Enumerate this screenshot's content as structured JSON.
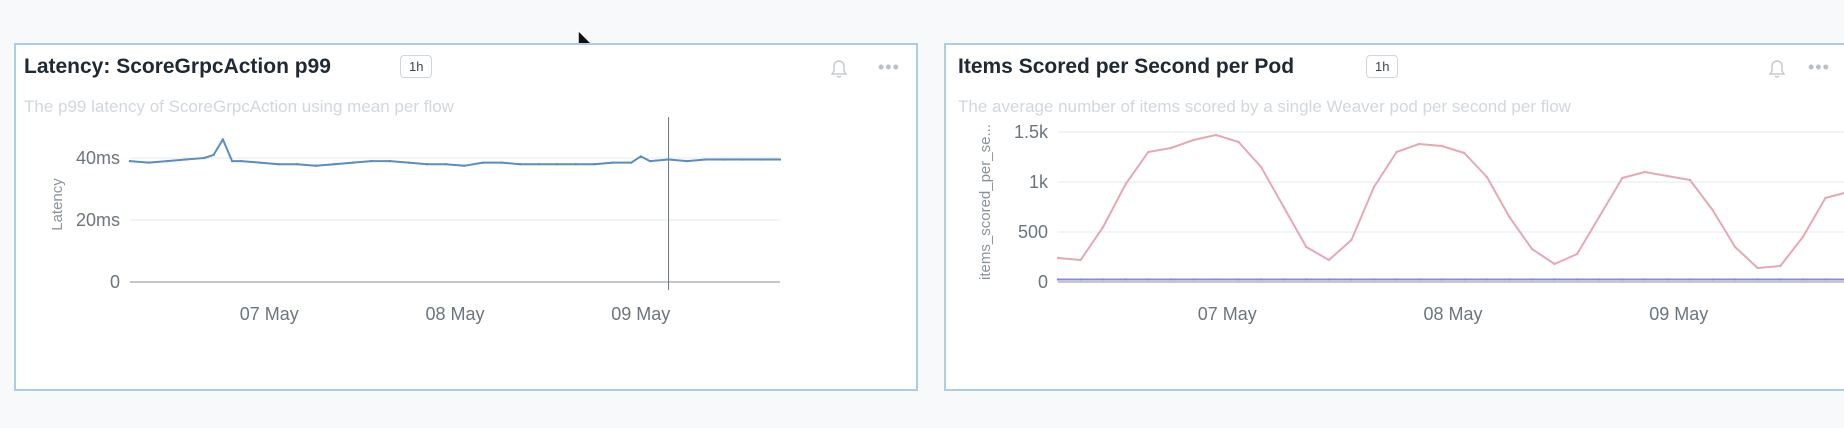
{
  "colors": {
    "latency_line": "#5b8dc0",
    "items_line": "#e5a9b4",
    "items_line2": "#8b88d8",
    "panel_border": "#a9cfe0"
  },
  "panels": [
    {
      "title": "Latency: ScoreGrpcAction p99",
      "range": "1h",
      "description": "The p99 latency of ScoreGrpcAction using mean per flow"
    },
    {
      "title": "Items Scored per Second per Pod",
      "range": "1h",
      "description": "The average number of items scored by a single Weaver pod per second per flow"
    }
  ],
  "chart_data": [
    {
      "type": "line",
      "title": "Latency: ScoreGrpcAction p99",
      "ylabel": "Latency",
      "xlabel": "",
      "x_ticks": [
        "07 May",
        "08 May",
        "09 May"
      ],
      "y_ticks": [
        "0",
        "20ms",
        "40ms"
      ],
      "ylim": [
        0,
        50
      ],
      "x_unit": "days",
      "xlim": [
        0,
        3.5
      ],
      "grid": true,
      "x": [
        0,
        0.1,
        0.2,
        0.3,
        0.4,
        0.45,
        0.5,
        0.55,
        0.6,
        0.7,
        0.8,
        0.9,
        1.0,
        1.1,
        1.2,
        1.3,
        1.4,
        1.5,
        1.6,
        1.7,
        1.8,
        1.9,
        2.0,
        2.1,
        2.2,
        2.3,
        2.4,
        2.5,
        2.6,
        2.7,
        2.75,
        2.8,
        2.9,
        3.0,
        3.1,
        3.2,
        3.3,
        3.4,
        3.5
      ],
      "series": [
        {
          "values": [
            39,
            38.5,
            39,
            39.5,
            40,
            41,
            46,
            39,
            39,
            38.5,
            38,
            38,
            37.5,
            38,
            38.5,
            39,
            39,
            38.5,
            38,
            38,
            37.5,
            38.5,
            38.5,
            38,
            38,
            38,
            38,
            38,
            38.5,
            38.5,
            40.5,
            39,
            39.5,
            39,
            39.5,
            39.5,
            39.5,
            39.5,
            39.5
          ]
        }
      ]
    },
    {
      "type": "line",
      "title": "Items Scored per Second per Pod",
      "ylabel": "items_scored_per_se...",
      "xlabel": "",
      "x_ticks": [
        "07 May",
        "08 May",
        "09 May"
      ],
      "y_ticks": [
        "0",
        "500",
        "1k",
        "1.5k"
      ],
      "ylim": [
        0,
        1600
      ],
      "x_unit": "days",
      "xlim": [
        0,
        3.5
      ],
      "grid": true,
      "x": [
        0,
        0.1,
        0.2,
        0.3,
        0.4,
        0.5,
        0.6,
        0.7,
        0.8,
        0.9,
        1.0,
        1.1,
        1.2,
        1.3,
        1.4,
        1.5,
        1.6,
        1.7,
        1.8,
        1.9,
        2.0,
        2.1,
        2.2,
        2.3,
        2.4,
        2.5,
        2.6,
        2.7,
        2.8,
        2.9,
        3.0,
        3.1,
        3.2,
        3.3,
        3.4,
        3.5
      ],
      "series": [
        {
          "values": [
            240,
            220,
            550,
            980,
            1300,
            1340,
            1420,
            1470,
            1400,
            1150,
            750,
            350,
            220,
            420,
            950,
            1300,
            1380,
            1360,
            1290,
            1050,
            650,
            330,
            180,
            280,
            660,
            1040,
            1100,
            1060,
            1020,
            720,
            350,
            140,
            160,
            450,
            840,
            900
          ]
        },
        {
          "values": [
            25,
            25,
            25,
            25,
            25,
            25,
            25,
            25,
            25,
            25,
            25,
            25,
            25,
            25,
            25,
            25,
            25,
            25,
            25,
            25,
            25,
            25,
            25,
            25,
            25,
            25,
            25,
            25,
            25,
            25,
            25,
            25,
            25,
            25,
            25,
            25
          ]
        }
      ]
    }
  ]
}
